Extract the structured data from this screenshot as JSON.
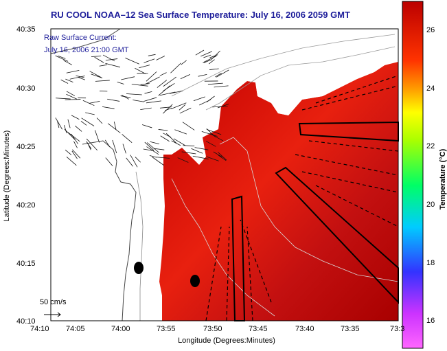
{
  "title": "RU COOL  NOAA–12  Sea Surface Temperature:  July 16, 2006 2059 GMT",
  "legend": {
    "line1": "Raw Surface Current:",
    "line2": "July 16, 2006 21:00 GMT"
  },
  "scale_label": "50 cm/s",
  "xlabel": "Longitude (Degrees:Minutes)",
  "ylabel": "Latitude (Degrees:Minutes)",
  "x_ticks": [
    "74:10",
    "74:05",
    "74:00",
    "73:55",
    "73:50",
    "73:45",
    "73:40",
    "73:35",
    "73:3"
  ],
  "y_ticks": [
    "40:35",
    "40:30",
    "40:25",
    "40:20",
    "40:15",
    "40:10"
  ],
  "colorbar": {
    "label": "Temperature (°C)",
    "ticks": [
      "26",
      "24",
      "22",
      "20",
      "18",
      "16"
    ],
    "range": [
      15.0,
      27.0
    ]
  },
  "colors": {
    "title": "#1d1d9a",
    "sst_warm": "#b00000",
    "sst_mid": "#e01a10",
    "land": "#ffffff"
  }
}
